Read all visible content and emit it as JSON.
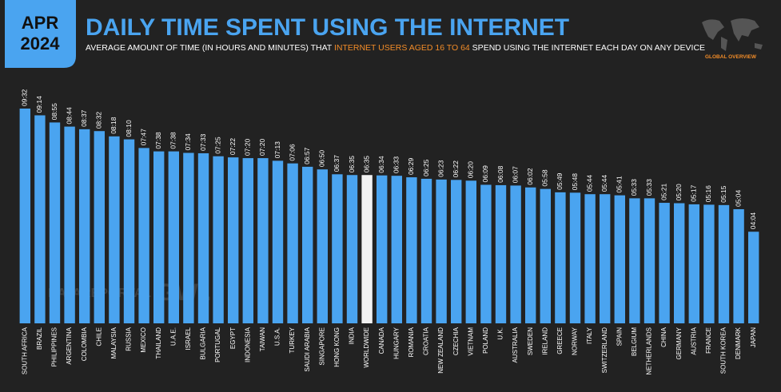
{
  "header": {
    "badge_line1": "APR",
    "badge_line2": "2024",
    "title": "DAILY TIME SPENT USING THE INTERNET",
    "subtitle_before": "AVERAGE AMOUNT OF TIME (IN HOURS AND MINUTES) THAT ",
    "subtitle_highlight": "INTERNET USERS AGED 16 TO 64",
    "subtitle_after": " SPEND USING THE INTERNET EACH DAY ON ANY DEVICE",
    "section": "GLOBAL OVERVIEW"
  },
  "watermark": {
    "left": "DATAREPORTAL",
    "right": "GWI."
  },
  "chart_data": {
    "type": "bar",
    "categories": [
      "SOUTH AFRICA",
      "BRAZIL",
      "PHILIPPINES",
      "ARGENTINA",
      "COLOMBIA",
      "CHILE",
      "MALAYSIA",
      "RUSSIA",
      "MEXICO",
      "THAILAND",
      "U.A.E.",
      "ISRAEL",
      "BULGARIA",
      "PORTUGAL",
      "EGYPT",
      "INDONESIA",
      "TAIWAN",
      "U.S.A.",
      "TURKEY",
      "SAUDI ARABIA",
      "SINGAPORE",
      "HONG KONG",
      "INDIA",
      "WORLDWIDE",
      "CANADA",
      "HUNGARY",
      "ROMANIA",
      "CROATIA",
      "NEW ZEALAND",
      "CZECHIA",
      "VIETNAM",
      "POLAND",
      "U.K.",
      "AUSTRALIA",
      "SWEDEN",
      "IRELAND",
      "GREECE",
      "NORWAY",
      "ITALY",
      "SWITZERLAND",
      "SPAIN",
      "BELGIUM",
      "NETHERLANDS",
      "CHINA",
      "GERMANY",
      "AUSTRIA",
      "FRANCE",
      "SOUTH KOREA",
      "DENMARK",
      "JAPAN"
    ],
    "values": [
      572,
      554,
      535,
      524,
      517,
      512,
      498,
      490,
      467,
      458,
      458,
      454,
      453,
      445,
      442,
      440,
      440,
      433,
      426,
      417,
      410,
      397,
      395,
      395,
      394,
      393,
      389,
      385,
      383,
      382,
      380,
      369,
      368,
      367,
      362,
      358,
      349,
      348,
      344,
      344,
      341,
      333,
      333,
      321,
      320,
      317,
      316,
      315,
      304,
      244
    ],
    "value_labels": [
      "09:32",
      "09:14",
      "08:55",
      "08:44",
      "08:37",
      "08:32",
      "08:18",
      "08:10",
      "07:47",
      "07:38",
      "07:38",
      "07:34",
      "07:33",
      "07:25",
      "07:22",
      "07:20",
      "07:20",
      "07:13",
      "07:06",
      "06:57",
      "06:50",
      "06:37",
      "06:35",
      "06:35",
      "06:34",
      "06:33",
      "06:29",
      "06:25",
      "06:23",
      "06:22",
      "06:20",
      "06:09",
      "06:08",
      "06:07",
      "06:02",
      "05:58",
      "05:49",
      "05:48",
      "05:44",
      "05:44",
      "05:41",
      "05:33",
      "05:33",
      "05:21",
      "05:20",
      "05:17",
      "05:16",
      "05:15",
      "05:04",
      "04:04"
    ],
    "color": "#4aa4f0",
    "highlight_index": 23,
    "highlight_color": "#f2f2f2"
  }
}
